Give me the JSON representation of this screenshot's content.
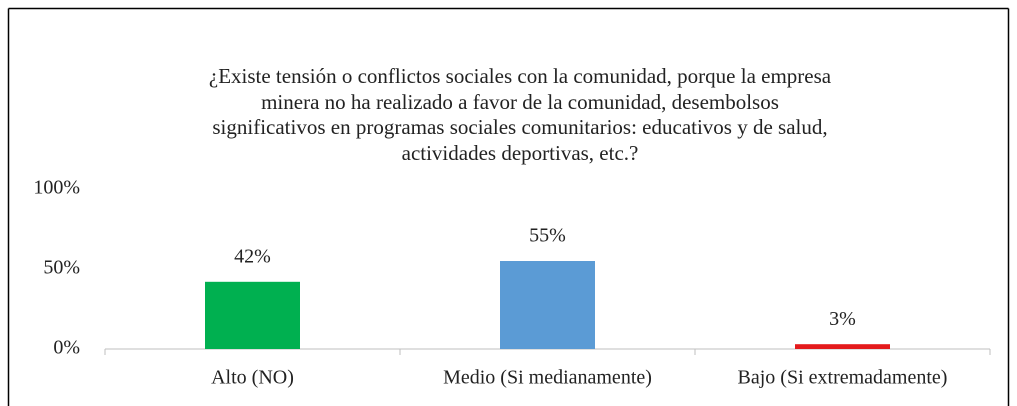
{
  "chart_data": {
    "type": "bar",
    "title": "¿Existe tensión o conflictos sociales con la comunidad, porque la empresa\nminera no ha realizado a favor de la comunidad, desembolsos\nsignificativos en programas sociales comunitarios: educativos y de salud,\nactividades deportivas, etc.?",
    "categories": [
      "Alto (NO)",
      "Medio (Si medianamente)",
      "Bajo (Si extremadamente)"
    ],
    "values": [
      42,
      55,
      3
    ],
    "value_labels": [
      "42%",
      "55%",
      "3%"
    ],
    "colors": [
      "#00b050",
      "#5b9bd5",
      "#e41a1c"
    ],
    "ylim": [
      0,
      100
    ],
    "yticks": [
      {
        "value": 0,
        "label": "0%"
      },
      {
        "value": 50,
        "label": "50%"
      },
      {
        "value": 100,
        "label": "100%"
      }
    ],
    "grid": false
  }
}
